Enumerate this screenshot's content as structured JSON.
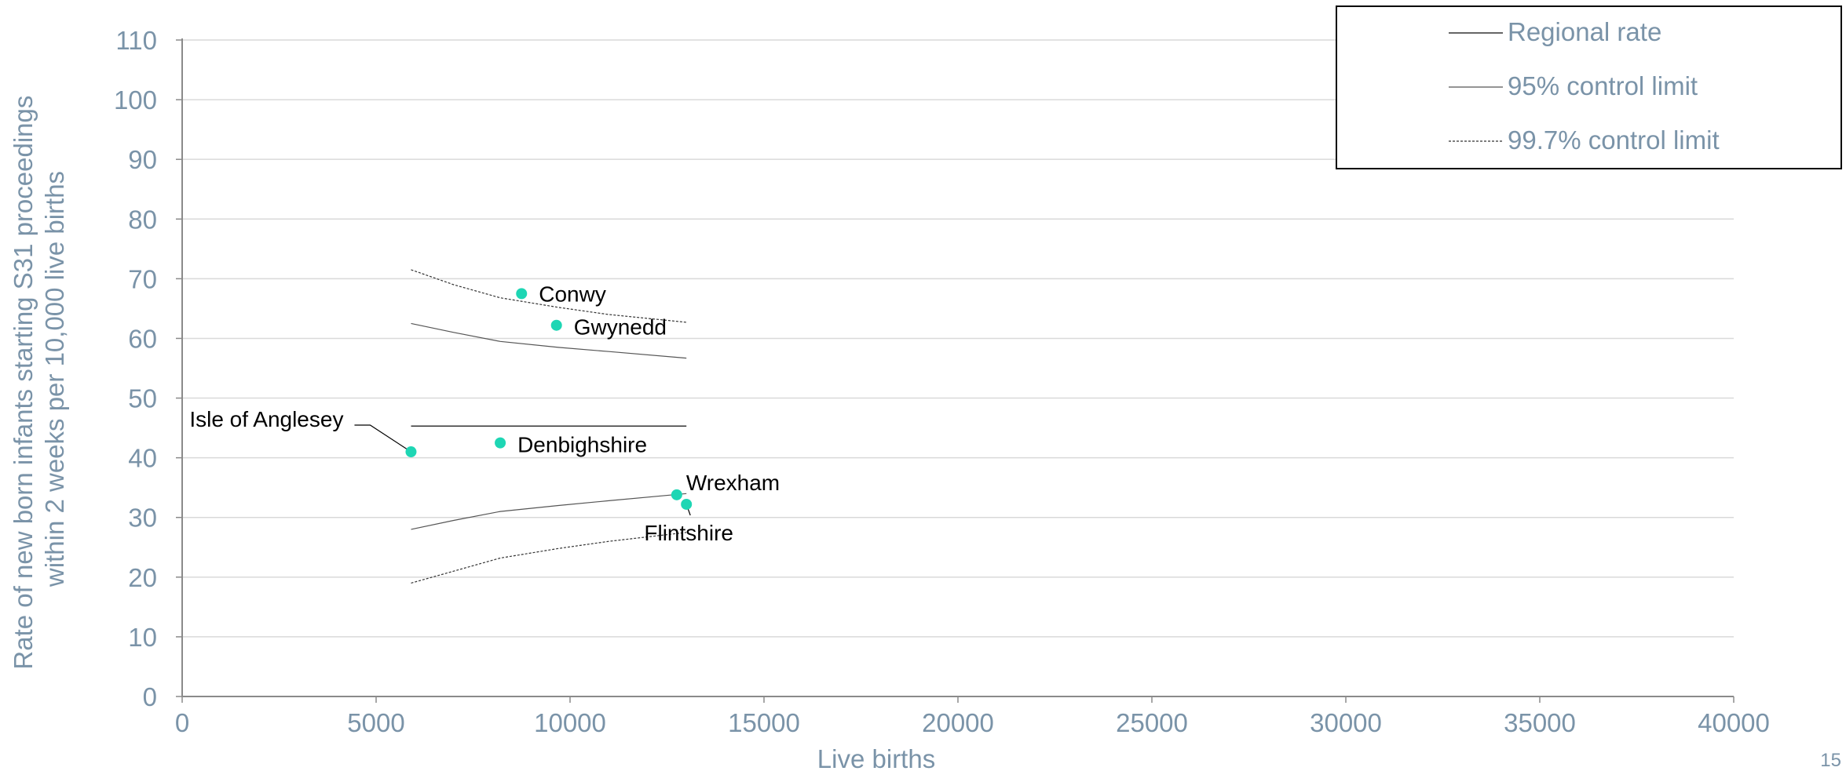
{
  "page_number": "15",
  "chart_data": {
    "type": "scatter",
    "xlabel": "Live births",
    "ylabel": "Rate of new born infants starting S31 proceedings within 2 weeks per 10,000 live births",
    "ylabel_lines": [
      "Rate of new born infants starting S31 proceedings",
      "within 2 weeks per 10,000 live births"
    ],
    "xlim": [
      0,
      40000
    ],
    "ylim": [
      0,
      110
    ],
    "x_ticks": [
      0,
      5000,
      10000,
      15000,
      20000,
      25000,
      30000,
      35000,
      40000
    ],
    "y_ticks": [
      0,
      10,
      20,
      30,
      40,
      50,
      60,
      70,
      80,
      90,
      100,
      110
    ],
    "grid": "horizontal",
    "legend_position": "top-right",
    "point_color": "#1ed6b4",
    "points": [
      {
        "label": "Isle of Anglesey",
        "x": 5900,
        "y": 41
      },
      {
        "label": "Conwy",
        "x": 8750,
        "y": 67.5
      },
      {
        "label": "Gwynedd",
        "x": 9650,
        "y": 62.2
      },
      {
        "label": "Denbighshire",
        "x": 8200,
        "y": 42.5
      },
      {
        "label": "Wrexham",
        "x": 12750,
        "y": 33.8
      },
      {
        "label": "Flintshire",
        "x": 13000,
        "y": 32.2
      }
    ],
    "series": [
      {
        "name": "Regional rate",
        "style": "solid",
        "x": [
          5900,
          13000
        ],
        "y": [
          45.3,
          45.3
        ]
      },
      {
        "name": "95% control limit",
        "style": "solid",
        "upper": {
          "x": [
            5900,
            7000,
            8200,
            9700,
            11000,
            13000
          ],
          "y": [
            62.5,
            61.0,
            59.5,
            58.5,
            57.8,
            56.7
          ]
        },
        "lower": {
          "x": [
            5900,
            7000,
            8200,
            9700,
            11000,
            13000
          ],
          "y": [
            28.0,
            29.5,
            31.0,
            32.0,
            32.8,
            34.0
          ]
        }
      },
      {
        "name": "99.7% control limit",
        "style": "dashed",
        "upper": {
          "x": [
            5900,
            7000,
            8200,
            9700,
            11000,
            13000
          ],
          "y": [
            71.5,
            69.0,
            66.8,
            65.2,
            64.0,
            62.7
          ]
        },
        "lower": {
          "x": [
            5900,
            7000,
            8200,
            9700,
            11000,
            13000
          ],
          "y": [
            19.0,
            21.0,
            23.2,
            24.8,
            26.0,
            27.5
          ]
        }
      }
    ]
  }
}
